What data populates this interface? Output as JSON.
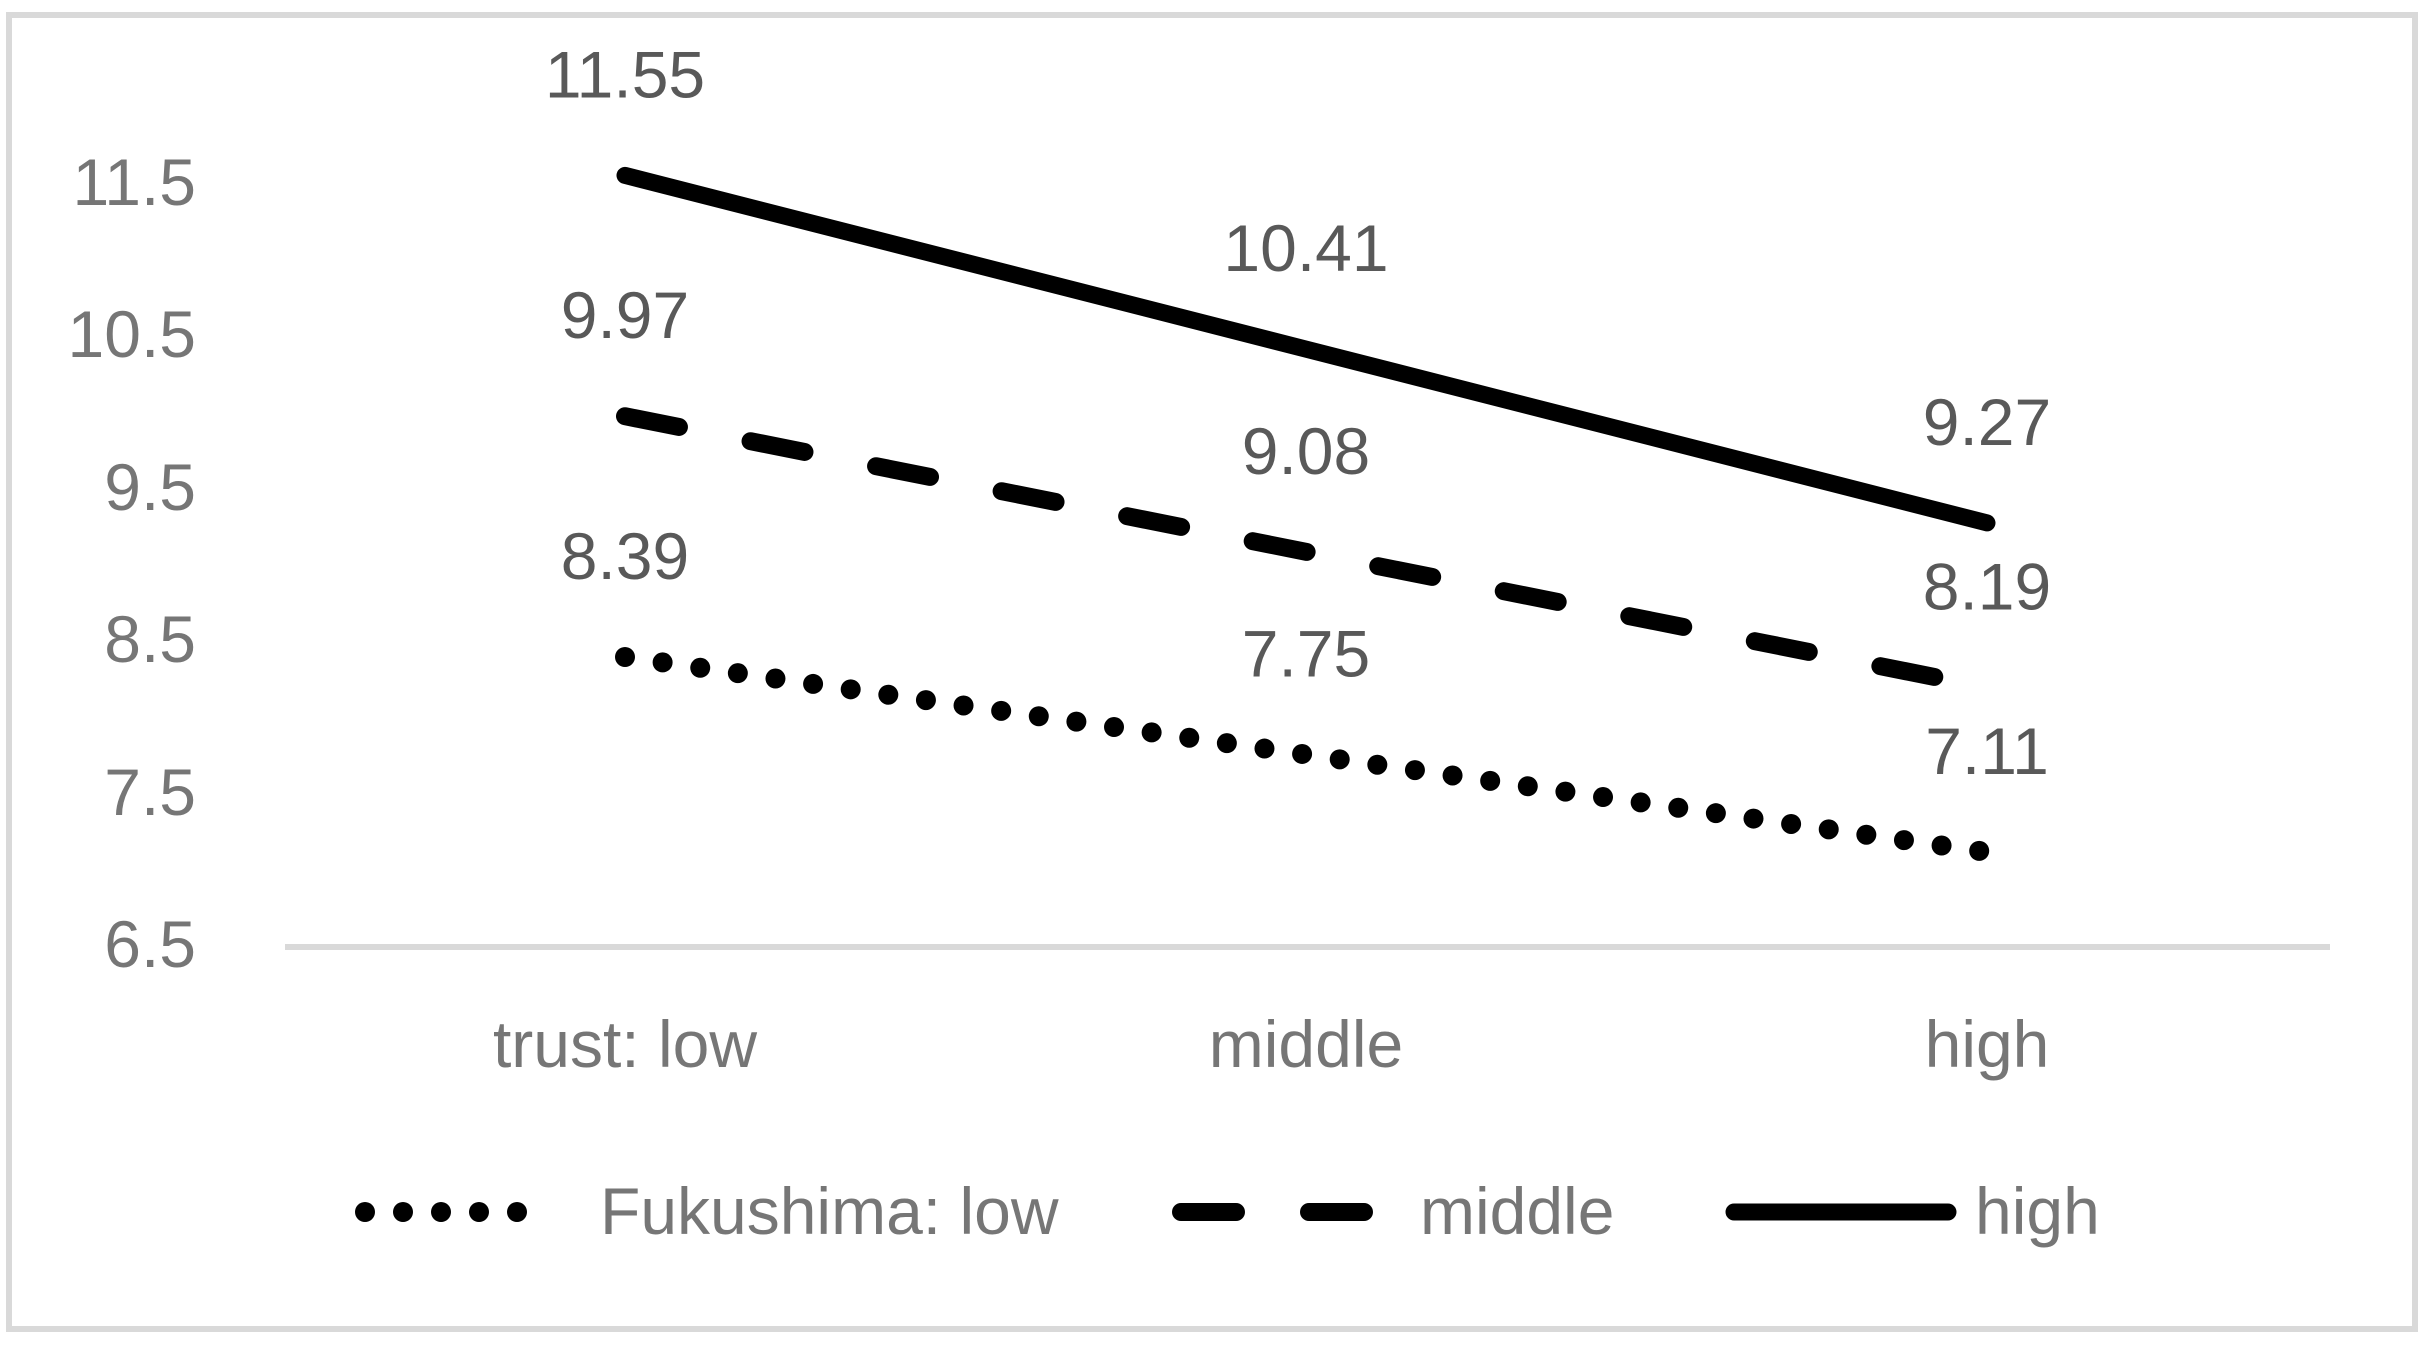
{
  "chart_data": {
    "type": "line",
    "title": "",
    "xlabel": "trust",
    "ylabel": "",
    "categories": [
      "trust: low",
      "middle",
      "high"
    ],
    "series": [
      {
        "name": "Fukushima: low",
        "style": "dotted",
        "values": [
          8.39,
          7.75,
          7.11
        ]
      },
      {
        "name": "middle",
        "style": "dashed",
        "values": [
          9.97,
          9.08,
          8.19
        ]
      },
      {
        "name": "high",
        "style": "solid",
        "values": [
          11.55,
          10.41,
          9.27
        ]
      }
    ],
    "y_axis": {
      "ticks": [
        11.5,
        10.5,
        9.5,
        8.5,
        7.5,
        6.5
      ],
      "min": 6.5,
      "max": 11.5
    },
    "legend": {
      "position": "bottom",
      "entries": [
        "Fukushima: low",
        "middle",
        "high"
      ]
    },
    "grid": "off",
    "data_labels": "on",
    "colors": {
      "line": "#000000",
      "data_label_text": "#595959",
      "axis_text": "#767676",
      "axis_line": "#d9d9d9",
      "border": "#d9d9d9",
      "background": "#ffffff"
    }
  }
}
